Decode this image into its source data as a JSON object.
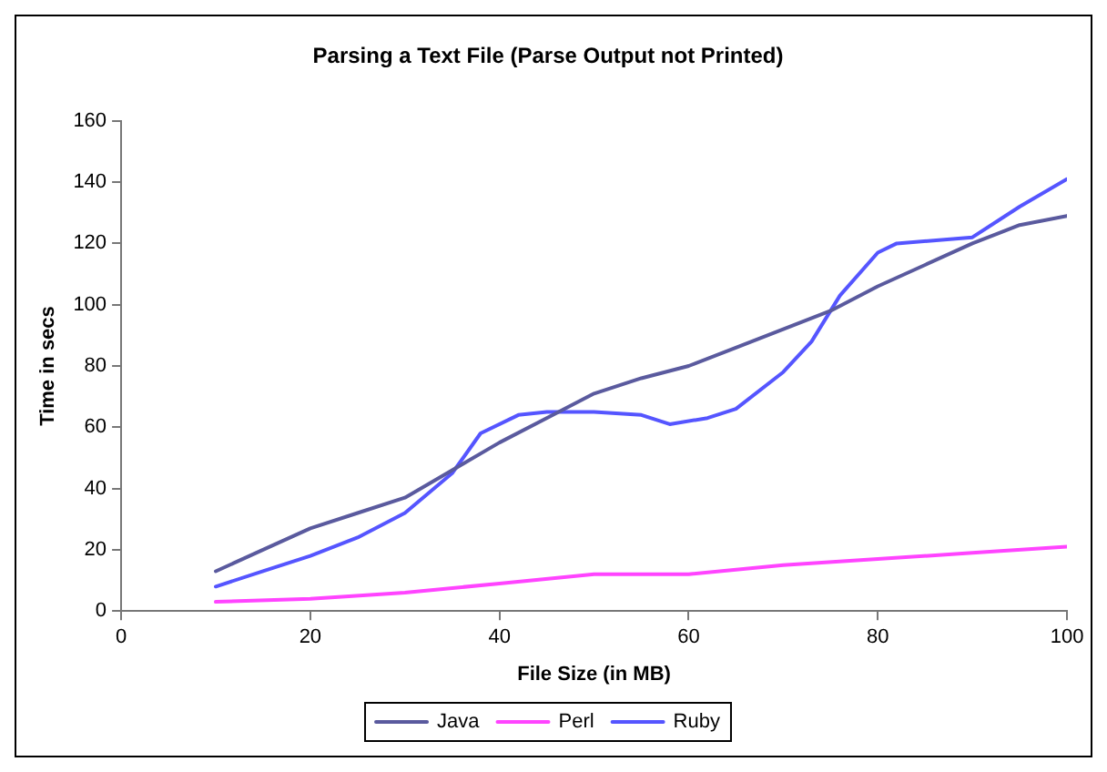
{
  "chart_data": {
    "type": "line",
    "title": "Parsing a Text File (Parse Output not Printed)",
    "xlabel": "File Size (in MB)",
    "ylabel": "Time in secs",
    "xlim": [
      0,
      100
    ],
    "xticks": [
      0,
      20,
      40,
      60,
      80,
      100
    ],
    "ylim": [
      0,
      160
    ],
    "yticks": [
      0,
      20,
      40,
      60,
      80,
      100,
      120,
      140,
      160
    ],
    "grid": false,
    "legend": "bottom",
    "marker": "none",
    "series": [
      {
        "name": "Java",
        "color": "#5a5a9e",
        "x": [
          10,
          15,
          20,
          25,
          30,
          35,
          40,
          45,
          50,
          55,
          60,
          65,
          70,
          75,
          80,
          85,
          90,
          95,
          100
        ],
        "values": [
          13,
          20,
          27,
          32,
          37,
          46,
          55,
          63,
          71,
          76,
          80,
          86,
          92,
          98,
          106,
          113,
          120,
          126,
          129
        ]
      },
      {
        "name": "Perl",
        "color": "#ff44ff",
        "x": [
          10,
          20,
          30,
          40,
          50,
          60,
          70,
          80,
          90,
          100
        ],
        "values": [
          3,
          4,
          6,
          9,
          12,
          12,
          15,
          17,
          19,
          21
        ]
      },
      {
        "name": "Ruby",
        "color": "#5555ff",
        "x": [
          10,
          15,
          20,
          25,
          30,
          35,
          38,
          42,
          45,
          50,
          55,
          58,
          62,
          65,
          70,
          73,
          76,
          80,
          82,
          90,
          95,
          100
        ],
        "values": [
          8,
          13,
          18,
          24,
          32,
          45,
          58,
          64,
          65,
          65,
          64,
          61,
          63,
          66,
          78,
          88,
          103,
          117,
          120,
          122,
          132,
          141
        ]
      }
    ]
  }
}
